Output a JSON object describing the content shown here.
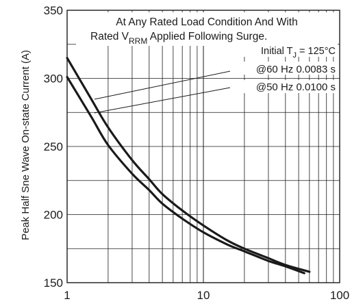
{
  "chart_data": {
    "type": "line",
    "ylabel": "Peak Half Sne Wave On-state Current (A)",
    "xlabel": "",
    "xscale": "log",
    "xlim": [
      1,
      100
    ],
    "ylim": [
      150,
      350
    ],
    "grid": true,
    "x_ticks": [
      1,
      10,
      100
    ],
    "y_ticks": [
      150,
      200,
      250,
      300,
      350
    ],
    "annotations": {
      "line1": "At Any Rated Load Condition And With",
      "line2_a": "Rated V",
      "line2_sub": "RRM",
      "line2_b": " Applied Following Surge.",
      "line3_a": "Initial T",
      "line3_sub": "J",
      "line3_b": " = 125°C",
      "series1_label": "@60 Hz 0.0083 s",
      "series2_label": "@50 Hz 0.0100 s"
    },
    "series": [
      {
        "name": "@60 Hz 0.0083 s",
        "x": [
          1,
          1.5,
          2,
          3,
          4,
          5,
          7,
          10,
          15,
          20,
          30,
          40,
          60
        ],
        "values": [
          315,
          285,
          264,
          240,
          226,
          215,
          203,
          192,
          181,
          175,
          168,
          163,
          158
        ]
      },
      {
        "name": "@50 Hz 0.0100 s",
        "x": [
          1,
          1.5,
          2,
          3,
          4,
          5,
          7,
          10,
          15,
          20,
          30,
          40,
          55
        ],
        "values": [
          301,
          272,
          251,
          230,
          218,
          208,
          197,
          187,
          178,
          173,
          166,
          162,
          157
        ]
      }
    ]
  }
}
